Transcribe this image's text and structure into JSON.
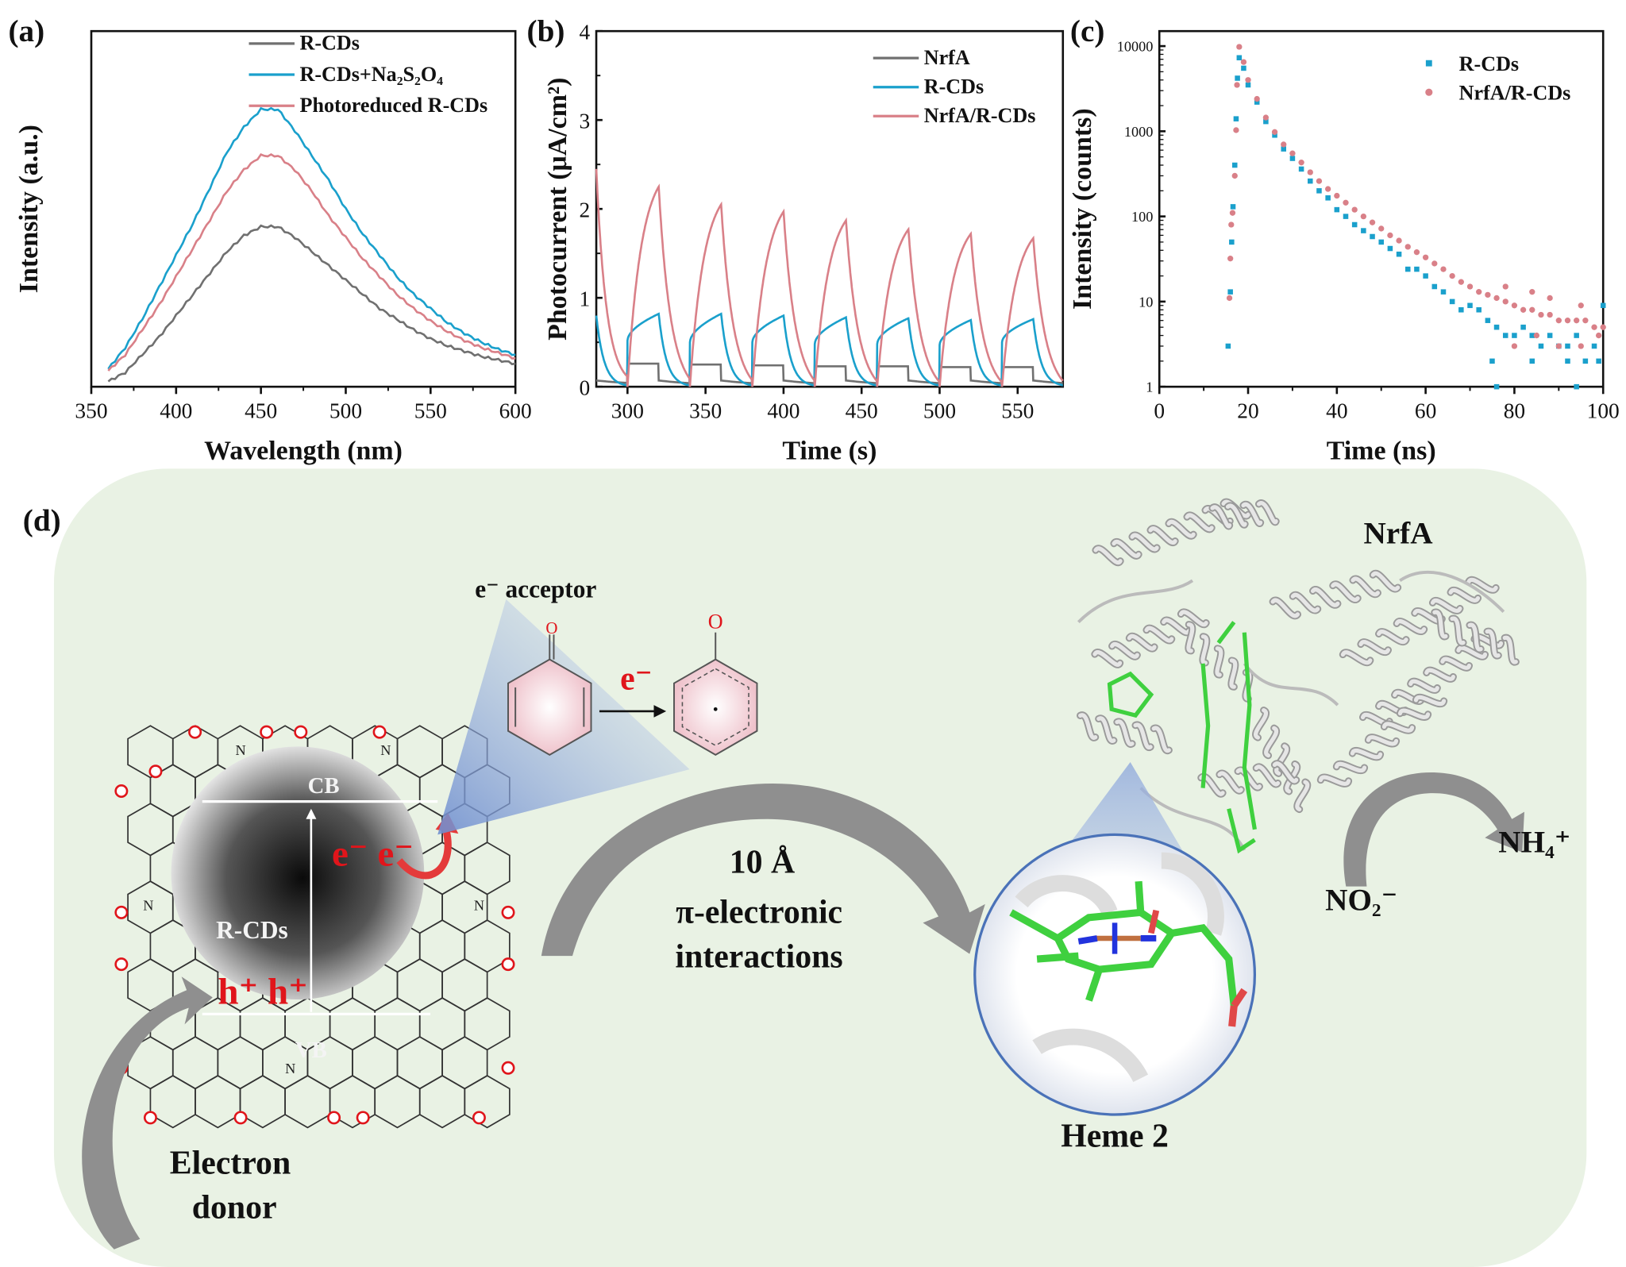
{
  "panels": {
    "a": "(a)",
    "b": "(b)",
    "c": "(c)",
    "d": "(d)"
  },
  "colors": {
    "gray": "#707070",
    "blue": "#1aa0cc",
    "pink": "#d98088",
    "panel_d_bg": "#e9f2e4",
    "red": "#e0151b",
    "green": "#33cc33"
  },
  "chart_data": [
    {
      "id": "a",
      "type": "line",
      "xlabel": "Wavelength (nm)",
      "ylabel": "Intensity (a.u.)",
      "xlim": [
        350,
        600
      ],
      "ylim": [
        0,
        100
      ],
      "xticks": [
        350,
        400,
        450,
        500,
        550,
        600
      ],
      "yticks_shown": false,
      "legend": "top-right",
      "x": [
        360,
        370,
        380,
        390,
        400,
        410,
        420,
        430,
        440,
        450,
        460,
        470,
        480,
        490,
        500,
        510,
        520,
        530,
        540,
        550,
        560,
        570,
        580,
        590,
        600
      ],
      "series": [
        {
          "name": "R-CDs",
          "color": "#707070",
          "values": [
            1.5,
            4,
            9,
            14,
            20,
            26,
            32,
            38,
            42.5,
            45,
            45,
            42,
            38,
            34,
            30,
            26,
            22,
            19,
            16,
            13.5,
            11.5,
            10,
            8.5,
            7.5,
            6.5
          ]
        },
        {
          "name": "R-CDs+Na₂S₂O₄",
          "color": "#1aa0cc",
          "values": [
            5,
            11,
            19,
            28,
            37,
            46,
            56,
            66,
            73,
            78,
            78,
            72,
            65,
            58,
            50,
            43,
            37,
            31,
            26,
            22,
            18,
            15,
            12.5,
            10.5,
            9
          ]
        },
        {
          "name": "Photoreduced R-CDs",
          "color": "#d98088",
          "values": [
            4.5,
            9,
            16,
            23,
            31,
            39,
            47,
            55,
            61,
            65,
            65,
            61,
            55,
            48,
            42,
            36,
            31,
            26,
            22,
            18.5,
            15.5,
            13,
            11,
            9.5,
            8
          ]
        }
      ]
    },
    {
      "id": "b",
      "type": "line",
      "xlabel": "Time (s)",
      "ylabel": "Photocurrent (μA/cm²)",
      "xlim": [
        280,
        579
      ],
      "ylim": [
        0,
        4
      ],
      "xticks": [
        300,
        350,
        400,
        450,
        500,
        550
      ],
      "yticks": [
        0,
        1,
        2,
        3,
        4
      ],
      "legend": "top-right",
      "light_on": [
        300,
        340,
        380,
        420,
        460,
        500,
        540
      ],
      "light_duration": 20,
      "series": [
        {
          "name": "NrfA",
          "color": "#707070",
          "start_value": 0.07,
          "on_value": [
            0.26,
            0.25,
            0.24,
            0.23,
            0.23,
            0.22,
            0.22
          ],
          "peak": [
            0.26,
            0.25,
            0.24,
            0.23,
            0.23,
            0.22,
            0.22
          ]
        },
        {
          "name": "R-CDs",
          "color": "#1aa0cc",
          "start_value": 0.8,
          "on_value": [
            0.52,
            0.5,
            0.5,
            0.48,
            0.48,
            0.47,
            0.5
          ],
          "peak": [
            0.82,
            0.82,
            0.8,
            0.78,
            0.77,
            0.75,
            0.76
          ]
        },
        {
          "name": "NrfA/R-CDs",
          "color": "#d98088",
          "start_value": 2.45,
          "on_value": [
            0,
            0,
            0,
            0,
            0,
            0,
            0
          ],
          "peak": [
            2.25,
            2.05,
            1.97,
            1.87,
            1.77,
            1.72,
            1.67
          ]
        }
      ]
    },
    {
      "id": "c",
      "type": "scatter",
      "xlabel": "Time (ns)",
      "ylabel": "Intensity (counts)",
      "xlim": [
        0,
        100
      ],
      "ylim": [
        1,
        15000
      ],
      "yscale": "log",
      "xticks": [
        0,
        20,
        40,
        60,
        80,
        100
      ],
      "yticks": [
        1,
        10,
        100,
        1000,
        10000
      ],
      "legend": "top-right",
      "series": [
        {
          "name": "R-CDs",
          "color": "#1aa0cc",
          "marker": "square",
          "points": [
            [
              15.5,
              3
            ],
            [
              16,
              13
            ],
            [
              16.3,
              50
            ],
            [
              16.6,
              130
            ],
            [
              17,
              400
            ],
            [
              17.3,
              1400
            ],
            [
              17.6,
              4200
            ],
            [
              18,
              7300
            ],
            [
              19,
              5500
            ],
            [
              20,
              3500
            ],
            [
              22,
              2200
            ],
            [
              24,
              1300
            ],
            [
              26,
              900
            ],
            [
              28,
              620
            ],
            [
              30,
              480
            ],
            [
              32,
              360
            ],
            [
              34,
              260
            ],
            [
              36,
              200
            ],
            [
              38,
              165
            ],
            [
              40,
              120
            ],
            [
              42,
              100
            ],
            [
              44,
              80
            ],
            [
              46,
              68
            ],
            [
              48,
              58
            ],
            [
              50,
              50
            ],
            [
              52,
              42
            ],
            [
              54,
              36
            ],
            [
              56,
              24
            ],
            [
              58,
              24
            ],
            [
              60,
              20
            ],
            [
              62,
              15
            ],
            [
              64,
              13
            ],
            [
              66,
              10
            ],
            [
              68,
              8
            ],
            [
              70,
              9
            ],
            [
              72,
              8
            ],
            [
              74,
              6
            ],
            [
              76,
              5
            ],
            [
              78,
              4
            ],
            [
              80,
              4
            ],
            [
              82,
              5
            ],
            [
              84,
              4
            ],
            [
              86,
              3
            ],
            [
              88,
              4
            ],
            [
              90,
              3
            ],
            [
              92,
              3
            ],
            [
              94,
              4
            ],
            [
              96,
              2
            ],
            [
              98,
              3
            ],
            [
              100,
              9
            ],
            [
              75,
              2
            ],
            [
              84,
              2
            ],
            [
              92,
              2
            ],
            [
              99,
              2
            ],
            [
              76,
              1
            ],
            [
              94,
              1
            ]
          ]
        },
        {
          "name": "NrfA/R-CDs",
          "color": "#d98088",
          "marker": "circle",
          "points": [
            [
              15.8,
              11
            ],
            [
              16,
              32
            ],
            [
              16.2,
              80
            ],
            [
              16.5,
              110
            ],
            [
              17,
              300
            ],
            [
              17.3,
              1030
            ],
            [
              17.5,
              3500
            ],
            [
              18,
              9800
            ],
            [
              19,
              6500
            ],
            [
              20,
              4000
            ],
            [
              22,
              2400
            ],
            [
              24,
              1450
            ],
            [
              26,
              980
            ],
            [
              28,
              700
            ],
            [
              30,
              550
            ],
            [
              32,
              430
            ],
            [
              34,
              330
            ],
            [
              36,
              260
            ],
            [
              38,
              210
            ],
            [
              40,
              175
            ],
            [
              42,
              145
            ],
            [
              44,
              120
            ],
            [
              46,
              100
            ],
            [
              48,
              85
            ],
            [
              50,
              72
            ],
            [
              52,
              60
            ],
            [
              54,
              52
            ],
            [
              56,
              44
            ],
            [
              58,
              38
            ],
            [
              60,
              33
            ],
            [
              62,
              28
            ],
            [
              64,
              24
            ],
            [
              66,
              20
            ],
            [
              68,
              17
            ],
            [
              70,
              15
            ],
            [
              72,
              13
            ],
            [
              74,
              12
            ],
            [
              76,
              11
            ],
            [
              78,
              10
            ],
            [
              80,
              9
            ],
            [
              82,
              8
            ],
            [
              84,
              8
            ],
            [
              86,
              7
            ],
            [
              88,
              7
            ],
            [
              90,
              6
            ],
            [
              92,
              6
            ],
            [
              94,
              6
            ],
            [
              96,
              6
            ],
            [
              98,
              5
            ],
            [
              100,
              5
            ],
            [
              80,
              3
            ],
            [
              85,
              4
            ],
            [
              90,
              3
            ],
            [
              95,
              3
            ],
            [
              99,
              4
            ],
            [
              84,
              13
            ],
            [
              78,
              15
            ],
            [
              88,
              11
            ],
            [
              95,
              9
            ]
          ]
        }
      ]
    }
  ],
  "diagram": {
    "cb": "CB",
    "vb": "VB",
    "core": "R-CDs",
    "electrons": "e⁻ e⁻",
    "holes": "h⁺ h⁺",
    "acceptor": "e⁻ acceptor",
    "reaction_electron": "e⁻",
    "oxygen": "O",
    "nitrogen": "N",
    "distance": "10 Å",
    "interaction_1": "π-electronic",
    "interaction_2": "interactions",
    "protein": "NrfA",
    "heme": "Heme 2",
    "substrate": "NO₂⁻",
    "product": "NH₄⁺",
    "donor_1": "Electron",
    "donor_2": "donor"
  }
}
